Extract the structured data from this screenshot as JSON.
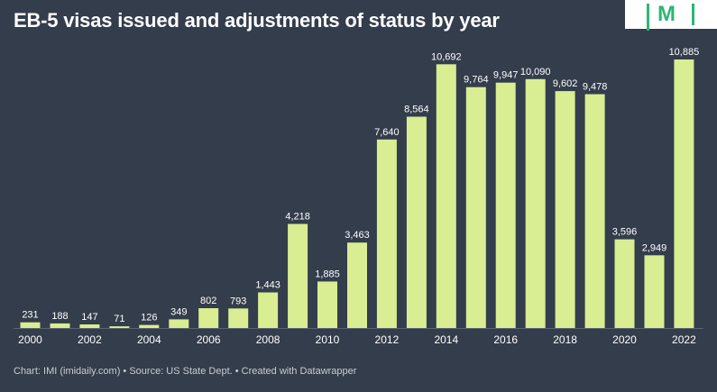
{
  "header": {
    "title": "EB-5 visas issued and adjustments of status by year",
    "logo_text": "M"
  },
  "footer": {
    "chart_credit": "Chart: IMI (imidaily.com)",
    "source": "Source: US State Dept.",
    "created": "Created with Datawrapper",
    "separator": " • "
  },
  "colors": {
    "background": "#333d4c",
    "bar": "#d9ed92",
    "label": "#ffffff",
    "axis_text": "#ffffff",
    "brand": "#2bb673"
  },
  "chart_data": {
    "type": "bar",
    "title": "EB-5 visas issued and adjustments of status by year",
    "categories": [
      2000,
      2001,
      2002,
      2003,
      2004,
      2005,
      2006,
      2007,
      2008,
      2009,
      2010,
      2011,
      2012,
      2013,
      2014,
      2015,
      2016,
      2017,
      2018,
      2019,
      2020,
      2021,
      2022
    ],
    "values": [
      231,
      188,
      147,
      71,
      126,
      349,
      802,
      793,
      1443,
      4218,
      1885,
      3463,
      7640,
      8564,
      10692,
      9764,
      9947,
      10090,
      9602,
      9478,
      3596,
      2949,
      10885
    ],
    "value_labels": [
      "231",
      "188",
      "147",
      "71",
      "126",
      "349",
      "802",
      "793",
      "1,443",
      "4,218",
      "1,885",
      "3,463",
      "7,640",
      "8,564",
      "10,692",
      "9,764",
      "9,947",
      "10,090",
      "9,602",
      "9,478",
      "3,596",
      "2,949",
      "10,885"
    ],
    "x_tick_labels": [
      "2000",
      "2002",
      "2004",
      "2006",
      "2008",
      "2010",
      "2012",
      "2014",
      "2016",
      "2018",
      "2020",
      "2022"
    ],
    "xlabel": "",
    "ylabel": "",
    "ylim": [
      0,
      10885
    ],
    "grid": false,
    "legend": "none"
  }
}
